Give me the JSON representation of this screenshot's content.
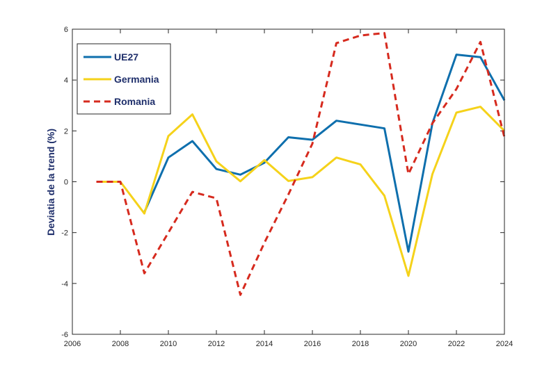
{
  "chart_data": {
    "type": "line",
    "title": "",
    "xlabel": "",
    "ylabel": "Deviatia de la trend (%)",
    "xlim": [
      2006,
      2024
    ],
    "ylim": [
      -6,
      6
    ],
    "xticks": [
      2006,
      2008,
      2010,
      2012,
      2014,
      2016,
      2018,
      2020,
      2022,
      2024
    ],
    "yticks": [
      -6,
      -4,
      -2,
      0,
      2,
      4,
      6
    ],
    "grid": false,
    "legend_position": "top-left",
    "x": [
      2007,
      2008,
      2009,
      2010,
      2011,
      2012,
      2013,
      2014,
      2015,
      2016,
      2017,
      2018,
      2019,
      2020,
      2021,
      2022,
      2023,
      2024
    ],
    "series": [
      {
        "name": "UE27",
        "color": "#0e6fad",
        "style": "solid",
        "values": [
          null,
          null,
          -1.2,
          0.95,
          1.6,
          0.5,
          0.28,
          0.75,
          1.75,
          1.65,
          2.4,
          2.25,
          2.1,
          -2.75,
          2.3,
          5.0,
          4.9,
          3.2
        ]
      },
      {
        "name": "Germania",
        "color": "#f5d21a",
        "style": "solid",
        "values": [
          0.0,
          0.0,
          -1.25,
          1.8,
          2.65,
          0.8,
          0.02,
          0.85,
          0.03,
          0.18,
          0.95,
          0.68,
          -0.55,
          -3.7,
          0.3,
          2.72,
          2.95,
          2.0
        ]
      },
      {
        "name": "Romania",
        "color": "#d62a1e",
        "style": "dashed",
        "values": [
          0.0,
          0.0,
          -3.6,
          -2.0,
          -0.4,
          -0.65,
          -4.45,
          -2.4,
          -0.5,
          1.5,
          5.45,
          5.75,
          5.85,
          0.3,
          2.3,
          3.65,
          5.5,
          1.75
        ]
      }
    ]
  }
}
